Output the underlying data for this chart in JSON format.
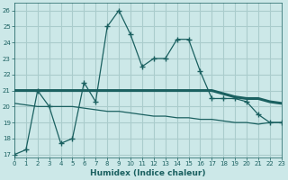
{
  "xlabel": "Humidex (Indice chaleur)",
  "bg_color": "#cce8e8",
  "grid_color": "#aacccc",
  "line_color": "#1a6060",
  "line1_x": [
    0,
    1,
    2,
    3,
    4,
    5,
    6,
    7,
    8,
    9,
    10,
    11,
    12,
    13,
    14,
    15,
    16,
    17,
    18,
    19,
    20,
    21,
    22,
    23
  ],
  "line1_y": [
    17,
    17.3,
    21,
    20,
    17.7,
    18,
    21.5,
    20.3,
    25,
    26,
    24.5,
    22.5,
    23,
    23,
    24.2,
    24.2,
    22.2,
    20.5,
    20.5,
    20.5,
    20.3,
    19.5,
    19.0,
    19.0
  ],
  "line2_x": [
    0,
    2,
    3,
    5,
    6,
    7,
    8,
    9,
    10,
    11,
    12,
    13,
    14,
    15,
    16,
    17,
    18,
    19,
    20,
    21,
    22,
    23
  ],
  "line2_y": [
    21.0,
    21.0,
    21.0,
    21.0,
    21.0,
    21.0,
    21.0,
    21.0,
    21.0,
    21.0,
    21.0,
    21.0,
    21.0,
    21.0,
    21.0,
    21.0,
    20.8,
    20.6,
    20.5,
    20.5,
    20.3,
    20.2
  ],
  "line3_x": [
    0,
    1,
    2,
    3,
    4,
    5,
    6,
    7,
    8,
    9,
    10,
    11,
    12,
    13,
    14,
    15,
    16,
    17,
    18,
    19,
    20,
    21,
    22,
    23
  ],
  "line3_y": [
    20.2,
    20.1,
    20.0,
    20.0,
    20.0,
    20.0,
    19.9,
    19.8,
    19.7,
    19.7,
    19.6,
    19.5,
    19.4,
    19.4,
    19.3,
    19.3,
    19.2,
    19.2,
    19.1,
    19.0,
    19.0,
    18.9,
    19.0,
    19.0
  ],
  "xlim": [
    0,
    23
  ],
  "ylim": [
    16.8,
    26.5
  ],
  "yticks": [
    17,
    18,
    19,
    20,
    21,
    22,
    23,
    24,
    25,
    26
  ],
  "xticks": [
    0,
    1,
    2,
    3,
    4,
    5,
    6,
    7,
    8,
    9,
    10,
    11,
    12,
    13,
    14,
    15,
    16,
    17,
    18,
    19,
    20,
    21,
    22,
    23
  ]
}
